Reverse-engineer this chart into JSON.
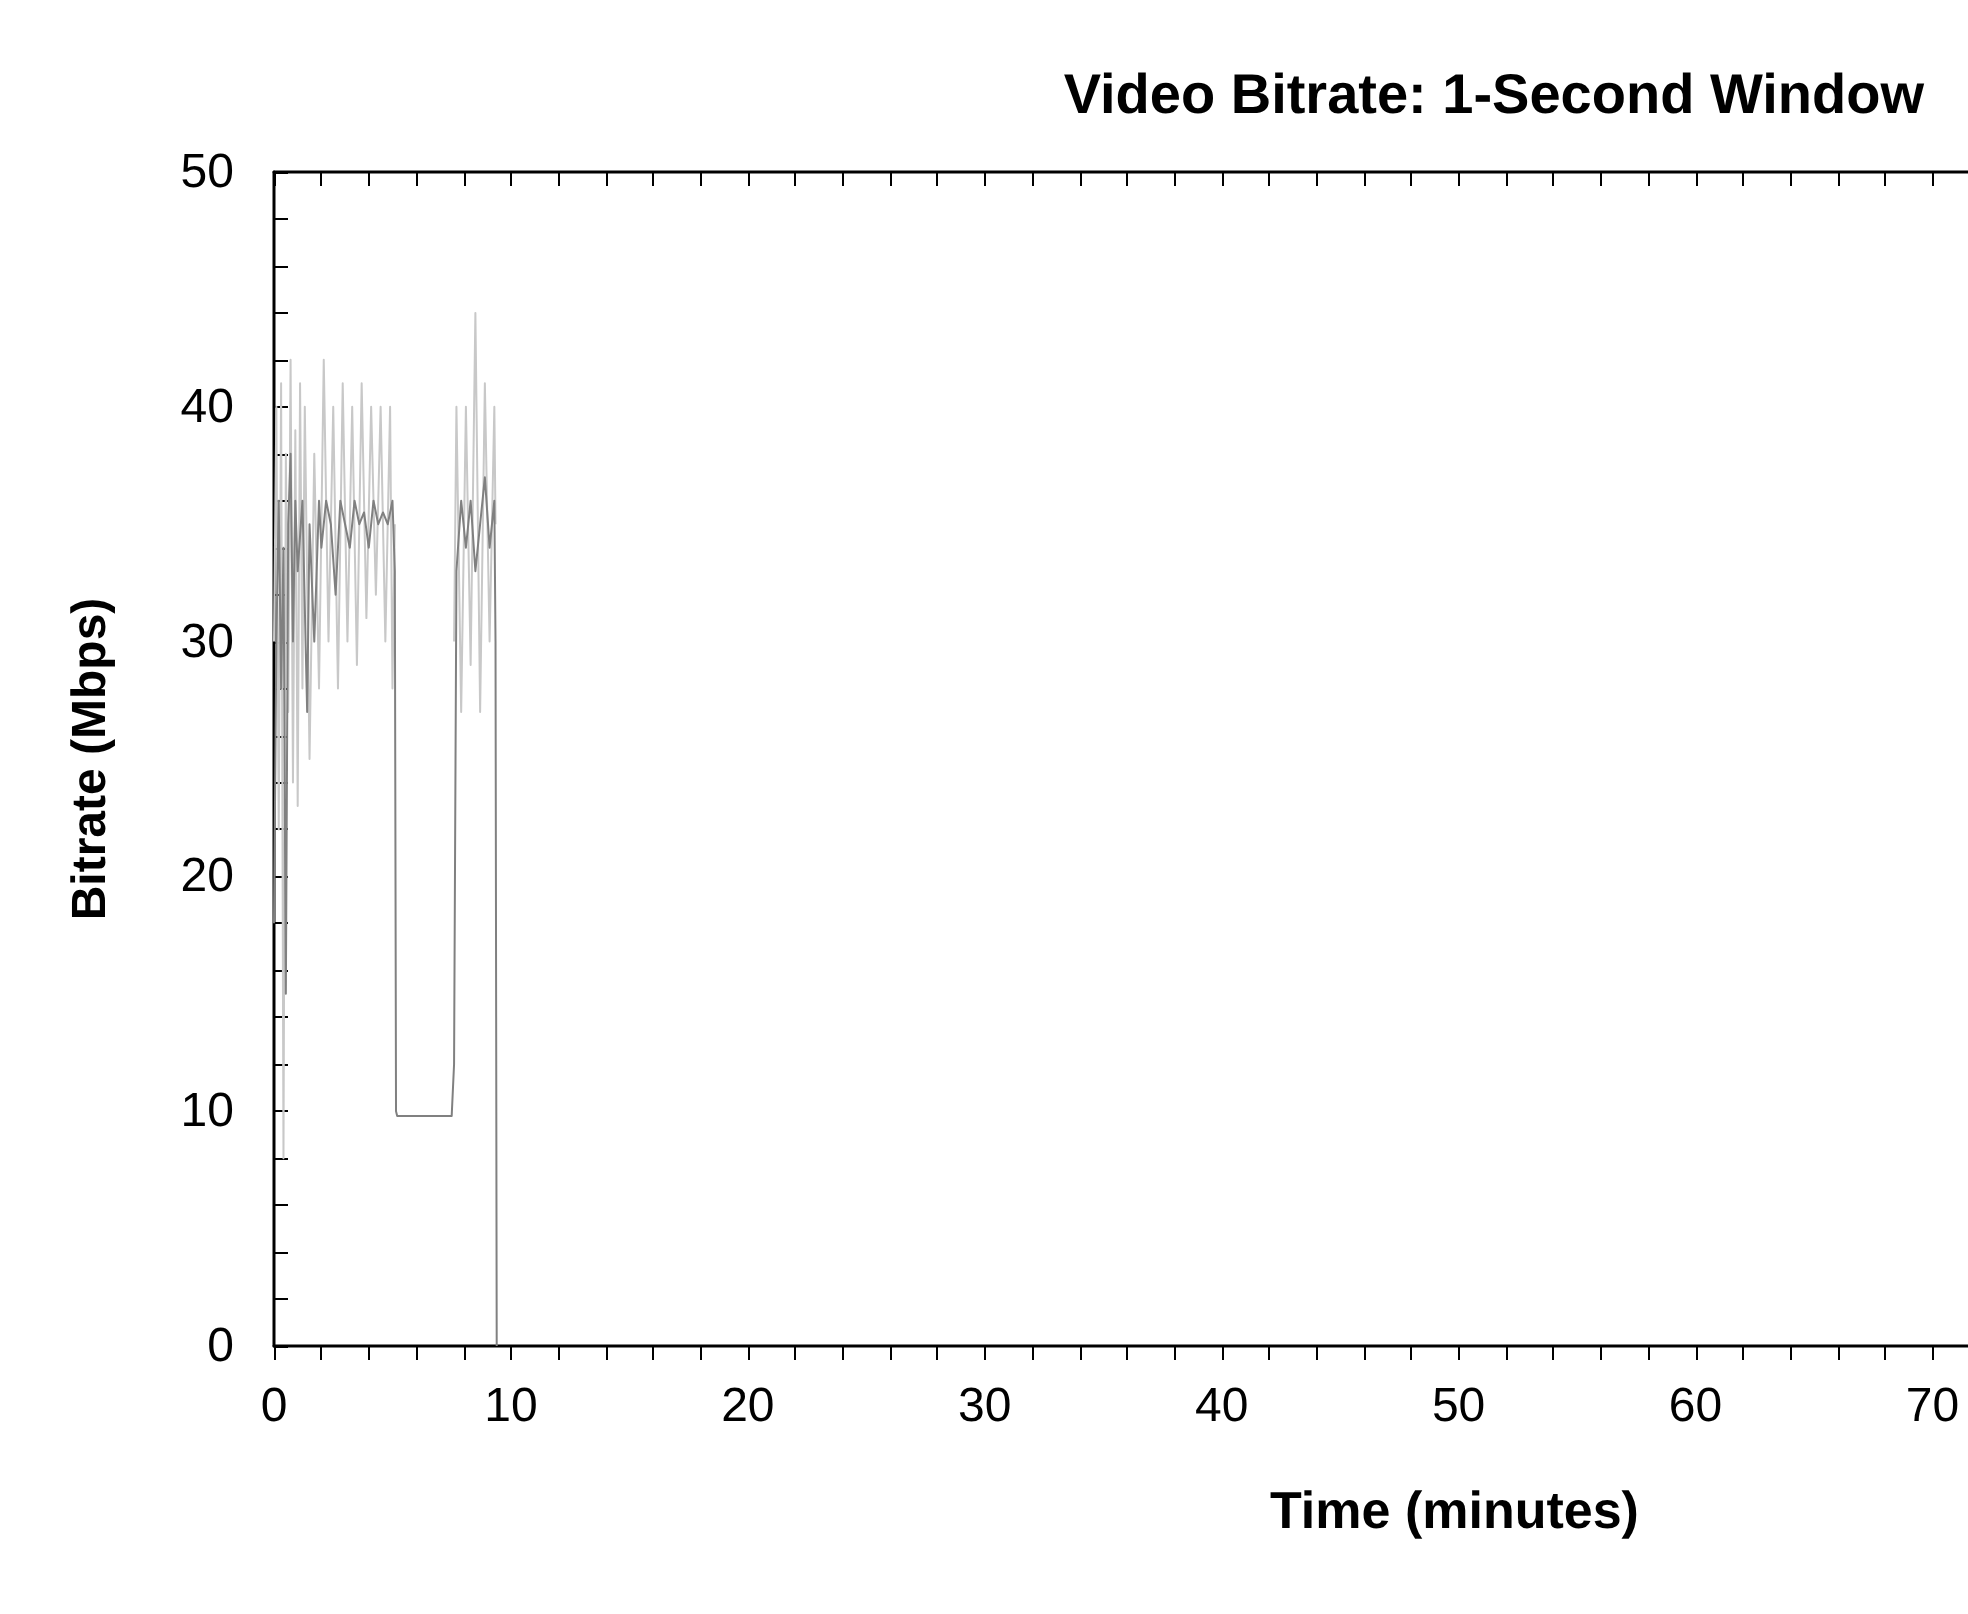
{
  "chart_data": {
    "type": "line",
    "title": "Video Bitrate: 1-Second Window",
    "xlabel": "Time (minutes)",
    "ylabel": "Bitrate (Mbps)",
    "grid": false,
    "marker": "none",
    "xlim": [
      0,
      71.5
    ],
    "xticks": [
      0,
      {
        "value": 2,
        "label": null
      },
      {
        "value": 4,
        "label": null
      },
      {
        "value": 6,
        "label": null
      },
      {
        "value": 8,
        "label": null
      },
      10,
      {
        "value": 12,
        "label": null
      },
      {
        "value": 14,
        "label": null
      },
      {
        "value": 16,
        "label": null
      },
      {
        "value": 18,
        "label": null
      },
      20,
      {
        "value": 22,
        "label": null
      },
      {
        "value": 24,
        "label": null
      },
      {
        "value": 26,
        "label": null
      },
      {
        "value": 28,
        "label": null
      },
      30,
      {
        "value": 32,
        "label": null
      },
      {
        "value": 34,
        "label": null
      },
      {
        "value": 36,
        "label": null
      },
      {
        "value": 38,
        "label": null
      },
      40,
      {
        "value": 42,
        "label": null
      },
      {
        "value": 44,
        "label": null
      },
      {
        "value": 46,
        "label": null
      },
      {
        "value": 48,
        "label": null
      },
      50,
      {
        "value": 52,
        "label": null
      },
      {
        "value": 54,
        "label": null
      },
      {
        "value": 56,
        "label": null
      },
      {
        "value": 58,
        "label": null
      },
      60,
      {
        "value": 62,
        "label": null
      },
      {
        "value": 64,
        "label": null
      },
      {
        "value": 66,
        "label": null
      },
      {
        "value": 68,
        "label": null
      },
      70
    ],
    "ylim": [
      0,
      50
    ],
    "yticks": [
      0,
      {
        "value": 2,
        "label": null
      },
      {
        "value": 4,
        "label": null
      },
      {
        "value": 6,
        "label": null
      },
      {
        "value": 8,
        "label": null
      },
      10,
      {
        "value": 12,
        "label": null
      },
      {
        "value": 14,
        "label": null
      },
      {
        "value": 16,
        "label": null
      },
      {
        "value": 18,
        "label": null
      },
      20,
      {
        "value": 22,
        "label": null
      },
      {
        "value": 24,
        "label": null
      },
      {
        "value": 26,
        "label": null
      },
      {
        "value": 28,
        "label": null
      },
      30,
      {
        "value": 32,
        "label": null
      },
      {
        "value": 34,
        "label": null
      },
      {
        "value": 36,
        "label": null
      },
      {
        "value": 38,
        "label": null
      },
      40,
      {
        "value": 42,
        "label": null
      },
      {
        "value": 44,
        "label": null
      },
      {
        "value": 46,
        "label": null
      },
      {
        "value": 48,
        "label": null
      },
      50
    ],
    "series": [
      {
        "color": "#c8c8c8",
        "x": [
          0,
          0.1,
          0.2,
          0.3,
          0.4,
          0.5,
          0.6,
          0.7,
          0.8,
          0.9,
          1.0,
          1.1,
          1.2,
          1.3,
          1.5,
          1.7,
          1.9,
          2.1,
          2.3,
          2.5,
          2.7,
          2.9,
          3.1,
          3.3,
          3.5,
          3.7,
          3.9,
          4.1,
          4.3,
          4.5,
          4.7,
          4.9,
          5.0,
          5.1,
          6.4,
          7.6,
          7.7,
          7.9,
          8.1,
          8.3,
          8.5,
          8.7,
          8.9,
          9.1,
          9.3,
          9.35
        ],
        "values": [
          30,
          40,
          22,
          41,
          8,
          38,
          27,
          42,
          24,
          39,
          23,
          41,
          28,
          40,
          25,
          38,
          28,
          42,
          30,
          40,
          28,
          41,
          30,
          40,
          29,
          41,
          31,
          40,
          32,
          40,
          30,
          40,
          28,
          35,
          null,
          30,
          40,
          27,
          40,
          29,
          44,
          27,
          41,
          30,
          40,
          35
        ]
      },
      {
        "color": "#808080",
        "x": [
          0,
          0.1,
          0.2,
          0.3,
          0.4,
          0.5,
          0.6,
          0.7,
          0.8,
          0.9,
          1.0,
          1.2,
          1.4,
          1.5,
          1.7,
          1.9,
          2.0,
          2.2,
          2.4,
          2.6,
          2.8,
          3.0,
          3.2,
          3.4,
          3.6,
          3.8,
          4.0,
          4.2,
          4.4,
          4.6,
          4.8,
          5.0,
          5.1,
          5.15,
          5.2,
          7.5,
          7.6,
          7.7,
          7.9,
          8.1,
          8.3,
          8.5,
          8.7,
          8.9,
          9.1,
          9.3,
          9.35,
          9.4
        ],
        "values": [
          18,
          30,
          36,
          28,
          34,
          15,
          35,
          38,
          30,
          36,
          33,
          36,
          27,
          35,
          30,
          36,
          34,
          36,
          35,
          32,
          36,
          35,
          34,
          36,
          35,
          35.5,
          34,
          36,
          35,
          35.5,
          35,
          36,
          33,
          10,
          9.8,
          9.8,
          12,
          33,
          36,
          34,
          36,
          33,
          35,
          37,
          34,
          36,
          30,
          0
        ]
      }
    ]
  }
}
